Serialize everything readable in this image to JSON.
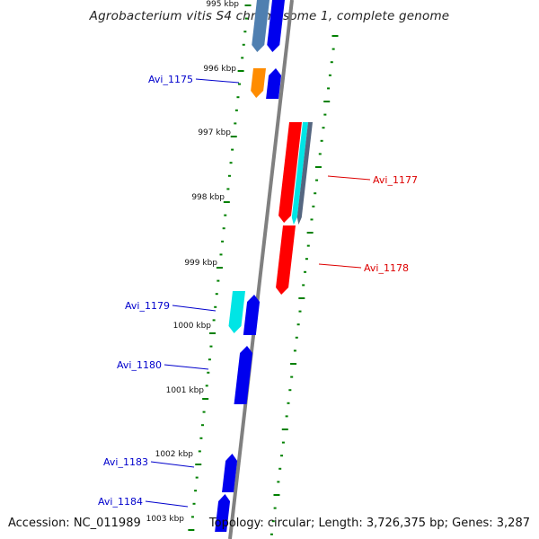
{
  "title": "Agrobacterium vitis S4 chromosome 1, complete genome",
  "footer": {
    "accession": "Accession: NC_011989",
    "summary": "Topology: circular; Length: 3,726,375 bp; Genes: 3,287"
  },
  "kbp_labels": [
    "995 kbp",
    "996 kbp",
    "997 kbp",
    "998 kbp",
    "999 kbp",
    "1000 kbp",
    "1001 kbp",
    "1002 kbp",
    "1003 kbp"
  ],
  "gene_labels": {
    "left": [
      "Avi_1175",
      "Avi_1179",
      "Avi_1180",
      "Avi_1183",
      "Avi_1184"
    ],
    "right": [
      "Avi_1177",
      "Avi_1178"
    ]
  },
  "colors": {
    "left_label": "#0000cc",
    "right_label": "#dd0000",
    "tick": "#008000",
    "backbone": "#7a7a7a",
    "gene_blue": "#0000ee",
    "gene_red": "#ff0000",
    "gene_orange": "#ff8c00",
    "gene_cyan": "#00e5e5",
    "gene_steel": "#4f7fb0",
    "gene_slate": "#556680"
  }
}
